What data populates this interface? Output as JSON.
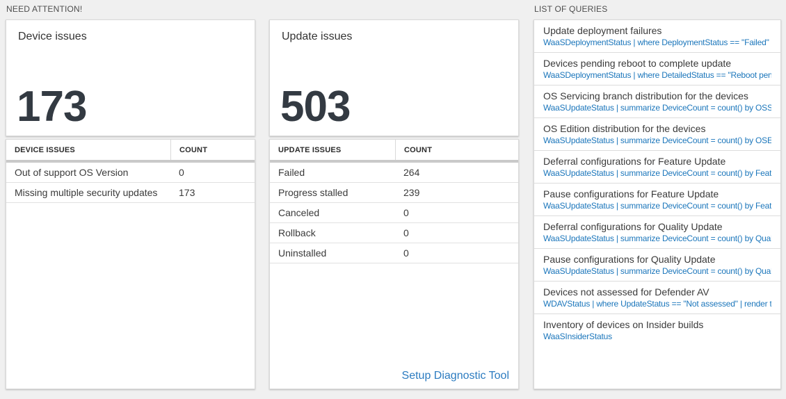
{
  "colors": {
    "page_background": "#f0f0f0",
    "card_background": "#ffffff",
    "link_blue": "#1b76bb",
    "big_number_color": "#333a42",
    "table_band_gray": "#c9c9c9"
  },
  "need_attention": {
    "header": "NEED ATTENTION!",
    "cards": [
      {
        "title": "Device issues",
        "count": "173",
        "table": {
          "headers": [
            "DEVICE ISSUES",
            "COUNT"
          ],
          "rows": [
            [
              "Out of support OS Version",
              "0"
            ],
            [
              "Missing multiple security updates",
              "173"
            ]
          ]
        }
      },
      {
        "title": "Update issues",
        "count": "503",
        "table": {
          "headers": [
            "UPDATE ISSUES",
            "COUNT"
          ],
          "rows": [
            [
              "Failed",
              "264"
            ],
            [
              "Progress stalled",
              "239"
            ],
            [
              "Canceled",
              "0"
            ],
            [
              "Rollback",
              "0"
            ],
            [
              "Uninstalled",
              "0"
            ]
          ]
        },
        "footer_link": "Setup Diagnostic Tool"
      }
    ]
  },
  "queries": {
    "header": "LIST OF QUERIES",
    "items": [
      {
        "title": "Update deployment failures",
        "query": "WaaSDeploymentStatus | where DeploymentStatus == \"Failed\" |..."
      },
      {
        "title": "Devices pending reboot to complete update",
        "query": "WaaSDeploymentStatus | where DetailedStatus == \"Reboot pend..."
      },
      {
        "title": "OS Servicing branch distribution for the devices",
        "query": "WaaSUpdateStatus | summarize DeviceCount = count() by OSSer..."
      },
      {
        "title": "OS Edition distribution for the devices",
        "query": "WaaSUpdateStatus | summarize DeviceCount = count() by OSEdit..."
      },
      {
        "title": "Deferral configurations for Feature Update",
        "query": "WaaSUpdateStatus | summarize DeviceCount = count() by Featur..."
      },
      {
        "title": "Pause configurations for Feature Update",
        "query": "WaaSUpdateStatus | summarize DeviceCount = count() by Featur..."
      },
      {
        "title": "Deferral configurations for Quality Update",
        "query": "WaaSUpdateStatus | summarize DeviceCount = count() by Qualit..."
      },
      {
        "title": "Pause configurations for Quality Update",
        "query": "WaaSUpdateStatus | summarize DeviceCount = count() by Qualit..."
      },
      {
        "title": "Devices not assessed for Defender AV",
        "query": "WDAVStatus | where UpdateStatus == \"Not assessed\" | render ta..."
      },
      {
        "title": "Inventory of devices on Insider builds",
        "query": "WaaSInsiderStatus"
      }
    ]
  }
}
